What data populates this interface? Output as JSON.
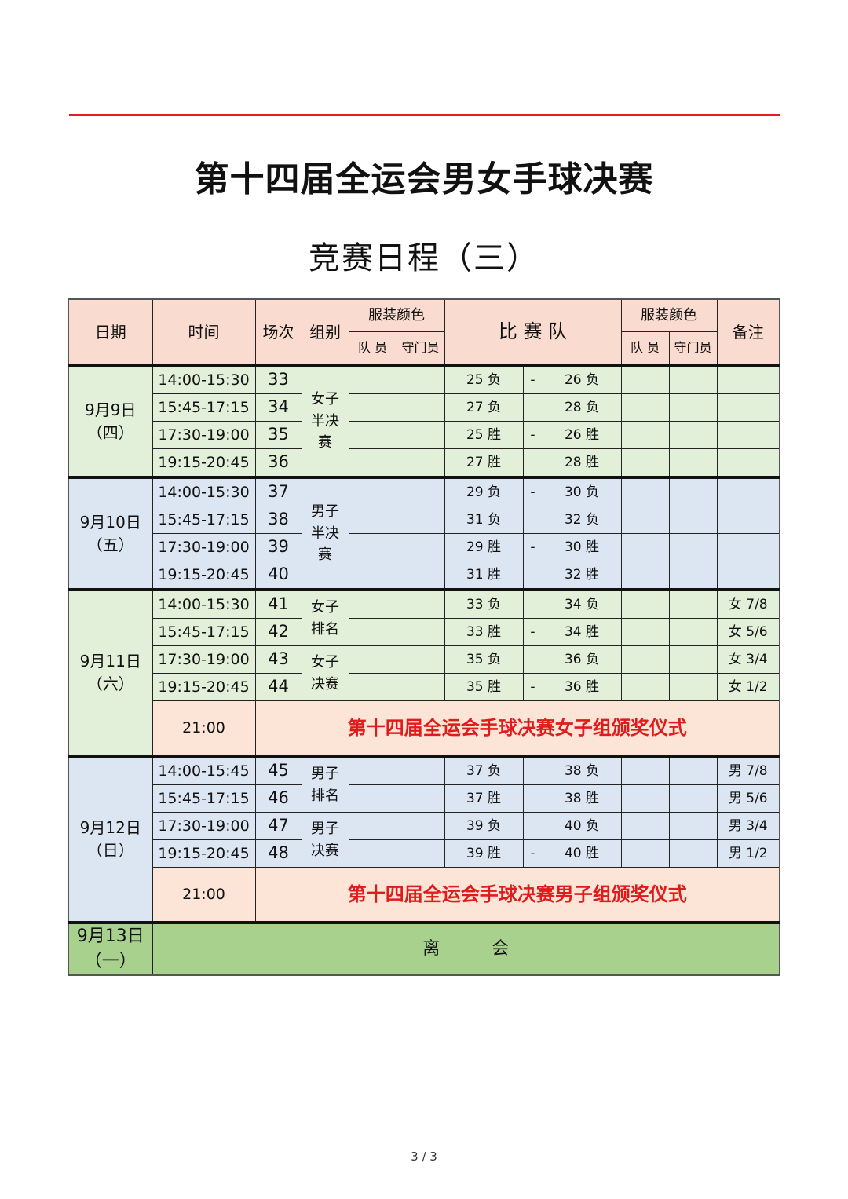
{
  "title": "第十四届全运会男女手球决赛",
  "subtitle": "竞赛日程（三）",
  "colors": {
    "header": "#f9dccf",
    "green": "#e2efd9",
    "blue": "#dce6f2",
    "ceremony": "#fce4d6",
    "leave": "#a9d18e",
    "red": "#e01b1b"
  },
  "header": {
    "date": "日期",
    "time": "时间",
    "match_no": "场次",
    "group": "组别",
    "uniform_color": "服装颜色",
    "teams": "比 赛 队",
    "uniform_color2": "服装颜色",
    "remarks": "备注",
    "player": "队 员",
    "goalkeeper": "守门员",
    "player2": "队 员",
    "goalkeeper2": "守门员"
  },
  "days": [
    {
      "date": "9月9日",
      "weekday": "（四）",
      "color": "green",
      "groups": [
        {
          "label": "女子半决赛",
          "span": 4
        }
      ],
      "matches": [
        {
          "time": "14:00-15:30",
          "no": "33",
          "team_a": "25 负",
          "sep": "-",
          "team_b": "26 负",
          "remark": ""
        },
        {
          "time": "15:45-17:15",
          "no": "34",
          "team_a": "27 负",
          "sep": "",
          "team_b": "28 负",
          "remark": ""
        },
        {
          "time": "17:30-19:00",
          "no": "35",
          "team_a": "25 胜",
          "sep": "-",
          "team_b": "26 胜",
          "remark": ""
        },
        {
          "time": "19:15-20:45",
          "no": "36",
          "team_a": "27 胜",
          "sep": "",
          "team_b": "28 胜",
          "remark": ""
        }
      ]
    },
    {
      "date": "9月10日",
      "weekday": "（五）",
      "color": "blue",
      "groups": [
        {
          "label": "男子半决赛",
          "span": 4
        }
      ],
      "matches": [
        {
          "time": "14:00-15:30",
          "no": "37",
          "team_a": "29 负",
          "sep": "-",
          "team_b": "30 负",
          "remark": ""
        },
        {
          "time": "15:45-17:15",
          "no": "38",
          "team_a": "31 负",
          "sep": "",
          "team_b": "32 负",
          "remark": ""
        },
        {
          "time": "17:30-19:00",
          "no": "39",
          "team_a": "29 胜",
          "sep": "-",
          "team_b": "30 胜",
          "remark": ""
        },
        {
          "time": "19:15-20:45",
          "no": "40",
          "team_a": "31 胜",
          "sep": "",
          "team_b": "32 胜",
          "remark": ""
        }
      ]
    },
    {
      "date": "9月11日",
      "weekday": "（六）",
      "color": "green",
      "groups": [
        {
          "label": "女子排名",
          "span": 2
        },
        {
          "label": "女子决赛",
          "span": 2
        }
      ],
      "matches": [
        {
          "time": "14:00-15:30",
          "no": "41",
          "team_a": "33 负",
          "sep": "",
          "team_b": "34 负",
          "remark": "女 7/8"
        },
        {
          "time": "15:45-17:15",
          "no": "42",
          "team_a": "33 胜",
          "sep": "-",
          "team_b": "34 胜",
          "remark": "女 5/6"
        },
        {
          "time": "17:30-19:00",
          "no": "43",
          "team_a": "35 负",
          "sep": "",
          "team_b": "36 负",
          "remark": "女 3/4"
        },
        {
          "time": "19:15-20:45",
          "no": "44",
          "team_a": "35 胜",
          "sep": "-",
          "team_b": "36 胜",
          "remark": "女 1/2"
        }
      ],
      "ceremony": {
        "time": "21:00",
        "text": "第十四届全运会手球决赛女子组颁奖仪式"
      }
    },
    {
      "date": "9月12日",
      "weekday": "（日）",
      "color": "blue",
      "groups": [
        {
          "label": "男子排名",
          "span": 2
        },
        {
          "label": "男子决赛",
          "span": 2
        }
      ],
      "matches": [
        {
          "time": "14:00-15:45",
          "no": "45",
          "team_a": "37 负",
          "sep": "",
          "team_b": "38 负",
          "remark": "男 7/8"
        },
        {
          "time": "15:45-17:15",
          "no": "46",
          "team_a": "37 胜",
          "sep": "",
          "team_b": "38 胜",
          "remark": "男 5/6"
        },
        {
          "time": "17:30-19:00",
          "no": "47",
          "team_a": "39 负",
          "sep": "",
          "team_b": "40 负",
          "remark": "男 3/4"
        },
        {
          "time": "19:15-20:45",
          "no": "48",
          "team_a": "39 胜",
          "sep": "-",
          "team_b": "40 胜",
          "remark": "男 1/2"
        }
      ],
      "ceremony": {
        "time": "21:00",
        "text": "第十四届全运会手球决赛男子组颁奖仪式"
      }
    }
  ],
  "departure": {
    "date": "9月13日",
    "weekday": "（一）",
    "text": "离　　　会"
  },
  "page_indicator": "3 / 3"
}
